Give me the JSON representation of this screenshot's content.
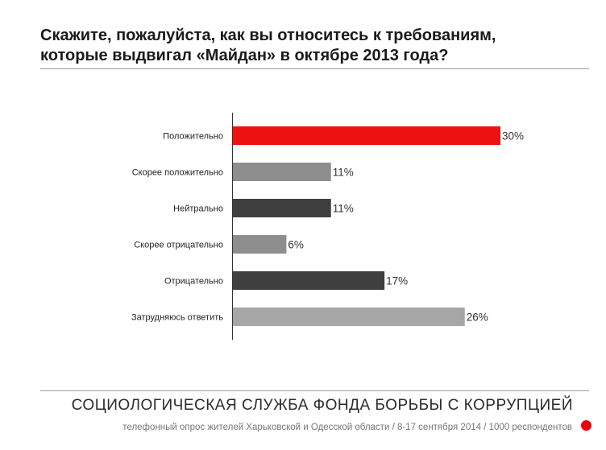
{
  "title_lines": [
    "Скажите, пожалуйста, как вы относитесь к требованиям,",
    "которые выдвигал «Майдан» в октябре 2013 года?"
  ],
  "footer": {
    "organization": "СОЦИОЛОГИЧЕСКАЯ СЛУЖБА ФОНДА БОРЬБЫ С КОРРУПЦИЕЙ",
    "note": "телефонный опрос жителей Харьковской и Одесской области / 8-17 сентября 2014 / 1000 респондентов",
    "dot_color": "#e8000d"
  },
  "chart_data": {
    "type": "bar",
    "orientation": "horizontal",
    "title": "",
    "xlabel": "",
    "ylabel": "",
    "unit": "%",
    "xlim": [
      0,
      30
    ],
    "grid": false,
    "legend": "none",
    "categories": [
      "Положительно",
      "Скорее положительно",
      "Нейтрально",
      "Скорее отрицательно",
      "Отрицательно",
      "Затрудняюсь ответить"
    ],
    "values": [
      30,
      11,
      11,
      6,
      17,
      26
    ],
    "value_labels": [
      "30%",
      "11%",
      "11%",
      "6%",
      "17%",
      "26%"
    ],
    "colors": [
      "#ee1111",
      "#8e8e8e",
      "#3f3f3f",
      "#8e8e8e",
      "#3f3f3f",
      "#a6a6a6"
    ]
  }
}
